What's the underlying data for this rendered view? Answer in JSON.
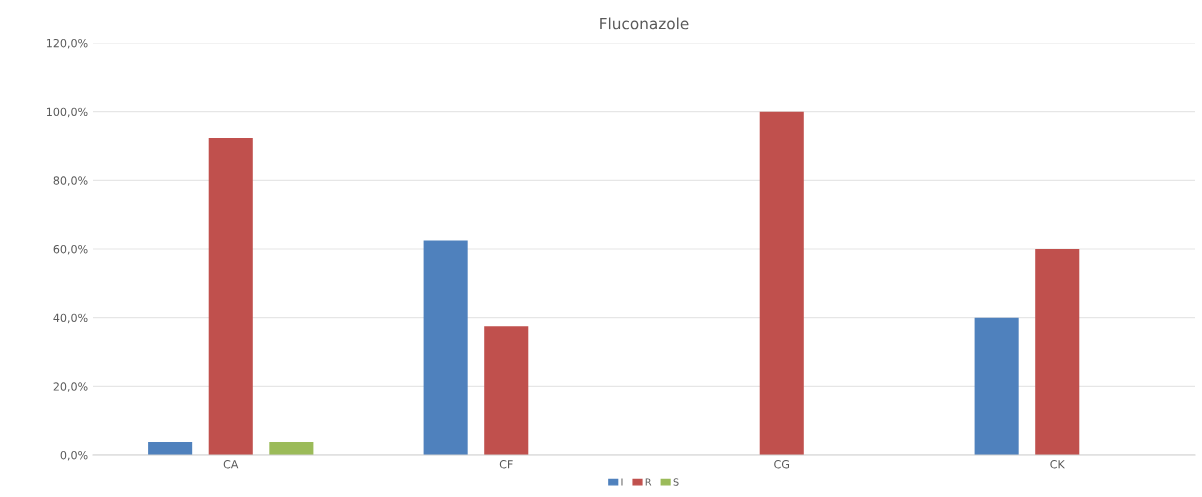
{
  "chart_data": {
    "type": "bar",
    "title": "Fluconazole",
    "categories": [
      "CA",
      "CF",
      "CG",
      "CK"
    ],
    "series": [
      {
        "name": "I",
        "color": "#4f81bd",
        "values": [
          3.8,
          62.5,
          null,
          40.0
        ]
      },
      {
        "name": "R",
        "color": "#c0504d",
        "values": [
          92.3,
          37.5,
          100.0,
          60.0
        ]
      },
      {
        "name": "S",
        "color": "#9bbb59",
        "values": [
          3.8,
          null,
          null,
          null
        ]
      }
    ],
    "ylim": [
      0,
      120
    ],
    "yticks": [
      {
        "value": 0,
        "label": "0,0%"
      },
      {
        "value": 20,
        "label": "20,0%"
      },
      {
        "value": 40,
        "label": "40,0%"
      },
      {
        "value": 60,
        "label": "60,0%"
      },
      {
        "value": 80,
        "label": "80,0%"
      },
      {
        "value": 100,
        "label": "100,0%"
      },
      {
        "value": 120,
        "label": "120,0%"
      }
    ],
    "grid": "y",
    "legend": "bottom"
  }
}
